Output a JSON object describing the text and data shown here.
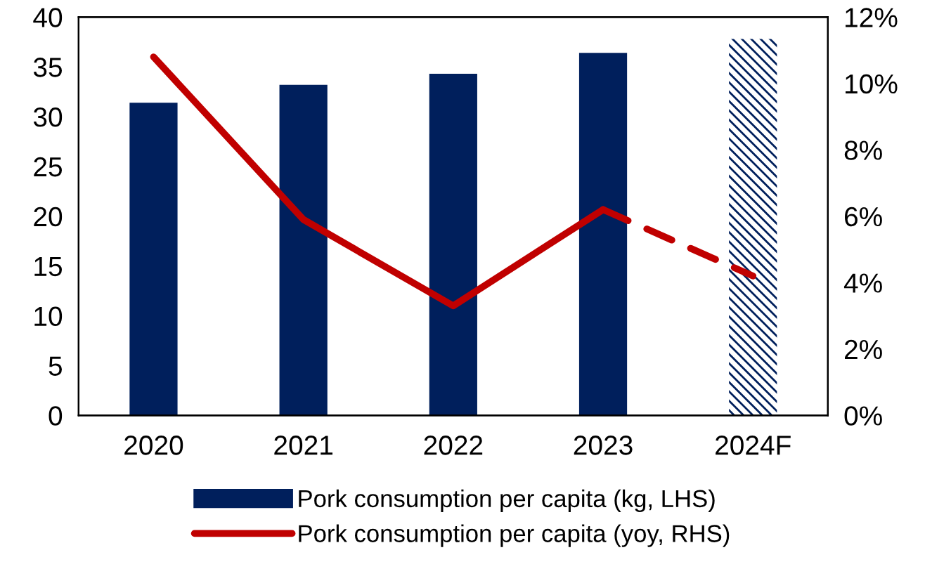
{
  "chart_data": {
    "type": "bar",
    "categories": [
      "2020",
      "2021",
      "2022",
      "2023",
      "2024F"
    ],
    "series": [
      {
        "name": "Pork consumption per capita (kg, LHS)",
        "color": "#001f5c",
        "colors": [
          "#001f5c",
          "#001f5c",
          "#001f5c",
          "#001f5c",
          "#ffffff"
        ],
        "values": [
          31.4,
          33.2,
          34.3,
          36.4,
          37.8
        ]
      },
      {
        "name": "Pork consumption per capita (yoy, RHS)",
        "type": "line",
        "axis": "y2",
        "color": "#c00000",
        "line_style": "solid",
        "values": [
          10.8,
          5.9,
          3.3,
          6.2,
          null
        ]
      },
      {
        "type": "line",
        "axis": "y2",
        "color": "#c00000",
        "line_style": "dashed",
        "values": [
          null,
          null,
          null,
          6.2,
          4.2
        ]
      }
    ],
    "ylim": [
      0,
      40
    ],
    "yticks": [
      0,
      5,
      10,
      15,
      20,
      25,
      30,
      35,
      40
    ],
    "y2lim": [
      0,
      12
    ],
    "y2ticks": [
      {
        "value": 0,
        "label": "0%"
      },
      {
        "value": 2,
        "label": "2%"
      },
      {
        "value": 4,
        "label": "4%"
      },
      {
        "value": 6,
        "label": "6%"
      },
      {
        "value": 8,
        "label": "8%"
      },
      {
        "value": 10,
        "label": "10%"
      },
      {
        "value": 12,
        "label": "12%"
      }
    ],
    "grid": false,
    "legend": "bottom"
  }
}
